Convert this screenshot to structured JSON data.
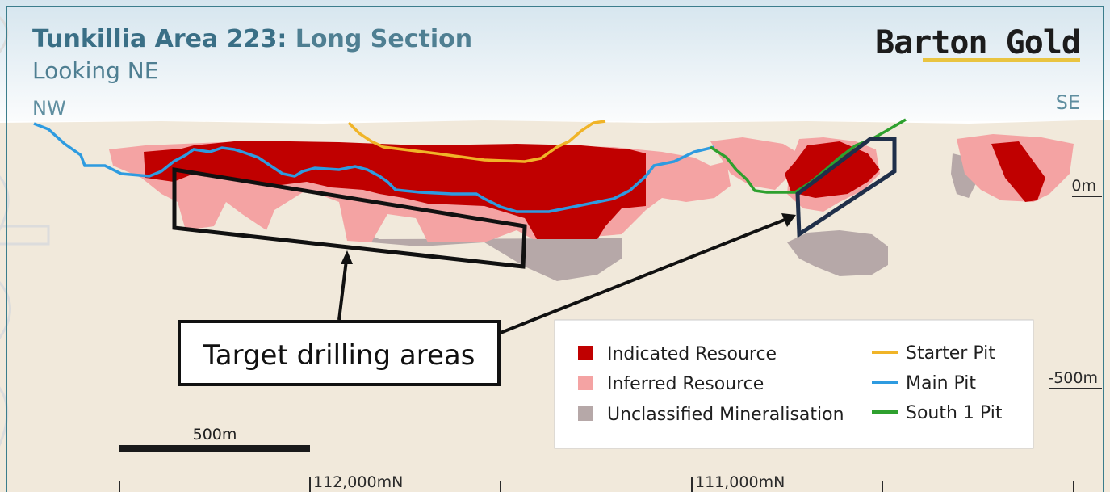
{
  "title": {
    "main": "Tunkillia Area 223:",
    "rest": " Long Section",
    "subtitle": "Looking NE"
  },
  "brand": "Barton Gold",
  "compass": {
    "left": "NW",
    "right": "SE"
  },
  "depth_labels": [
    "0m",
    "-500m"
  ],
  "coordinates": [
    "112,000mN",
    "111,000mN"
  ],
  "scale_bar": "500m",
  "callout": "Target drilling areas",
  "legend": {
    "resources": [
      {
        "label": "Indicated Resource",
        "color": "#c00000"
      },
      {
        "label": "Inferred Resource",
        "color": "#f4a3a3"
      },
      {
        "label": "Unclassified Mineralisation",
        "color": "#b6a8a8"
      }
    ],
    "pits": [
      {
        "label": "Starter Pit",
        "color": "#f0b428"
      },
      {
        "label": "Main Pit",
        "color": "#2e9be0"
      },
      {
        "label": "South 1 Pit",
        "color": "#2ea02e"
      }
    ]
  },
  "colors": {
    "sky_top": "#d7e6ef",
    "sky_bottom": "#ffffff",
    "ground": "#f1e9db",
    "frame": "#3b7d8c",
    "target_box_dark": "#1f2f4a",
    "brand_underline": "#e9c440"
  }
}
